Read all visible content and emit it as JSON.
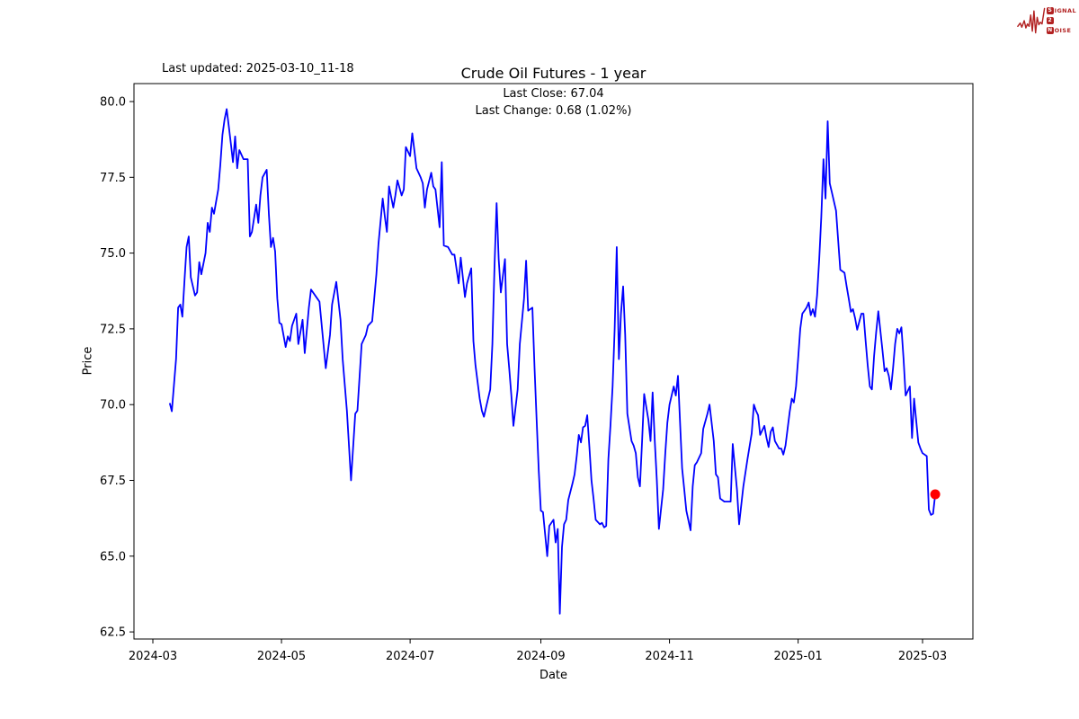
{
  "page": {
    "last_updated": "Last updated: 2025-03-10_11-18",
    "title": "Crude Oil Futures - 1 year",
    "annotation": {
      "last_close": "Last Close: 67.04",
      "last_change": "Last Change: 0.68 (1.02%)"
    },
    "xlabel": "Date",
    "ylabel": "Price"
  },
  "logo": {
    "color": "#b22222",
    "rows": [
      {
        "badge": "S",
        "rest": "IGNAL"
      },
      {
        "badge": "2",
        "rest": ""
      },
      {
        "badge": "N",
        "rest": "OISE"
      }
    ]
  },
  "chart_data": {
    "type": "line",
    "title": "Crude Oil Futures - 1 year",
    "xlabel": "Date",
    "ylabel": "Price",
    "last_close": 67.04,
    "last_change_abs": 0.68,
    "last_change_pct": 1.02,
    "line_color": "#0000ff",
    "marker_color": "#ff0000",
    "grid": false,
    "legend": "none",
    "ylim": [
      62.3,
      80.6
    ],
    "yticks": [
      62.5,
      65.0,
      67.5,
      70.0,
      72.5,
      75.0,
      77.5,
      80.0
    ],
    "xtick_labels": [
      "2024-03",
      "2024-05",
      "2024-07",
      "2024-09",
      "2024-11",
      "2025-01",
      "2025-03"
    ],
    "x_start": "2024-03-01",
    "dates": [
      "2024-03-09",
      "2024-03-10",
      "2024-03-12",
      "2024-03-13",
      "2024-03-14",
      "2024-03-15",
      "2024-03-16",
      "2024-03-17",
      "2024-03-18",
      "2024-03-19",
      "2024-03-21",
      "2024-03-22",
      "2024-03-23",
      "2024-03-24",
      "2024-03-26",
      "2024-03-27",
      "2024-03-28",
      "2024-03-29",
      "2024-03-30",
      "2024-04-01",
      "2024-04-02",
      "2024-04-03",
      "2024-04-04",
      "2024-04-05",
      "2024-04-06",
      "2024-04-07",
      "2024-04-08",
      "2024-04-09",
      "2024-04-10",
      "2024-04-11",
      "2024-04-13",
      "2024-04-15",
      "2024-04-16",
      "2024-04-17",
      "2024-04-19",
      "2024-04-20",
      "2024-04-21",
      "2024-04-22",
      "2024-04-24",
      "2024-04-25",
      "2024-04-26",
      "2024-04-27",
      "2024-04-28",
      "2024-04-29",
      "2024-04-30",
      "2024-05-01",
      "2024-05-03",
      "2024-05-04",
      "2024-05-05",
      "2024-05-06",
      "2024-05-08",
      "2024-05-09",
      "2024-05-11",
      "2024-05-12",
      "2024-05-14",
      "2024-05-15",
      "2024-05-18",
      "2024-05-19",
      "2024-05-22",
      "2024-05-24",
      "2024-05-25",
      "2024-05-27",
      "2024-05-29",
      "2024-05-30",
      "2024-06-01",
      "2024-06-03",
      "2024-06-05",
      "2024-06-06",
      "2024-06-08",
      "2024-06-10",
      "2024-06-11",
      "2024-06-13",
      "2024-06-14",
      "2024-06-15",
      "2024-06-16",
      "2024-06-18",
      "2024-06-19",
      "2024-06-20",
      "2024-06-21",
      "2024-06-23",
      "2024-06-24",
      "2024-06-25",
      "2024-06-27",
      "2024-06-28",
      "2024-06-29",
      "2024-07-01",
      "2024-07-02",
      "2024-07-03",
      "2024-07-04",
      "2024-07-06",
      "2024-07-07",
      "2024-07-08",
      "2024-07-09",
      "2024-07-11",
      "2024-07-12",
      "2024-07-13",
      "2024-07-15",
      "2024-07-16",
      "2024-07-17",
      "2024-07-19",
      "2024-07-21",
      "2024-07-22",
      "2024-07-24",
      "2024-07-25",
      "2024-07-27",
      "2024-07-28",
      "2024-07-30",
      "2024-07-31",
      "2024-08-01",
      "2024-08-03",
      "2024-08-04",
      "2024-08-05",
      "2024-08-06",
      "2024-08-08",
      "2024-08-09",
      "2024-08-10",
      "2024-08-11",
      "2024-08-12",
      "2024-08-13",
      "2024-08-15",
      "2024-08-16",
      "2024-08-17",
      "2024-08-18",
      "2024-08-19",
      "2024-08-21",
      "2024-08-22",
      "2024-08-24",
      "2024-08-25",
      "2024-08-26",
      "2024-08-28",
      "2024-08-29",
      "2024-08-30",
      "2024-08-31",
      "2024-09-01",
      "2024-09-02",
      "2024-09-04",
      "2024-09-05",
      "2024-09-07",
      "2024-09-08",
      "2024-09-09",
      "2024-09-10",
      "2024-09-11",
      "2024-09-12",
      "2024-09-13",
      "2024-09-14",
      "2024-09-16",
      "2024-09-17",
      "2024-09-18",
      "2024-09-19",
      "2024-09-20",
      "2024-09-21",
      "2024-09-22",
      "2024-09-23",
      "2024-09-24",
      "2024-09-25",
      "2024-09-26",
      "2024-09-27",
      "2024-09-29",
      "2024-09-30",
      "2024-10-01",
      "2024-10-02",
      "2024-10-03",
      "2024-10-04",
      "2024-10-05",
      "2024-10-06",
      "2024-10-07",
      "2024-10-08",
      "2024-10-09",
      "2024-10-10",
      "2024-10-11",
      "2024-10-12",
      "2024-10-14",
      "2024-10-15",
      "2024-10-16",
      "2024-10-17",
      "2024-10-18",
      "2024-10-19",
      "2024-10-20",
      "2024-10-22",
      "2024-10-23",
      "2024-10-24",
      "2024-10-25",
      "2024-10-26",
      "2024-10-27",
      "2024-10-29",
      "2024-10-30",
      "2024-10-31",
      "2024-11-01",
      "2024-11-03",
      "2024-11-04",
      "2024-11-05",
      "2024-11-07",
      "2024-11-08",
      "2024-11-09",
      "2024-11-11",
      "2024-11-12",
      "2024-11-13",
      "2024-11-14",
      "2024-11-16",
      "2024-11-17",
      "2024-11-19",
      "2024-11-20",
      "2024-11-22",
      "2024-11-23",
      "2024-11-24",
      "2024-11-25",
      "2024-11-27",
      "2024-11-28",
      "2024-11-30",
      "2024-12-01",
      "2024-12-03",
      "2024-12-04",
      "2024-12-06",
      "2024-12-08",
      "2024-12-10",
      "2024-12-11",
      "2024-12-12",
      "2024-12-13",
      "2024-12-14",
      "2024-12-16",
      "2024-12-17",
      "2024-12-18",
      "2024-12-19",
      "2024-12-20",
      "2024-12-21",
      "2024-12-23",
      "2024-12-24",
      "2024-12-25",
      "2024-12-26",
      "2024-12-27",
      "2024-12-28",
      "2024-12-29",
      "2024-12-30",
      "2024-12-31",
      "2025-01-01",
      "2025-01-02",
      "2025-01-03",
      "2025-01-04",
      "2025-01-05",
      "2025-01-06",
      "2025-01-07",
      "2025-01-08",
      "2025-01-09",
      "2025-01-10",
      "2025-01-11",
      "2025-01-12",
      "2025-01-13",
      "2025-01-14",
      "2025-01-15",
      "2025-01-16",
      "2025-01-17",
      "2025-01-19",
      "2025-01-20",
      "2025-01-21",
      "2025-01-23",
      "2025-01-24",
      "2025-01-25",
      "2025-01-26",
      "2025-01-27",
      "2025-01-28",
      "2025-01-29",
      "2025-01-31",
      "2025-02-01",
      "2025-02-02",
      "2025-02-03",
      "2025-02-04",
      "2025-02-05",
      "2025-02-06",
      "2025-02-07",
      "2025-02-08",
      "2025-02-10",
      "2025-02-11",
      "2025-02-12",
      "2025-02-13",
      "2025-02-14",
      "2025-02-15",
      "2025-02-16",
      "2025-02-17",
      "2025-02-18",
      "2025-02-19",
      "2025-02-20",
      "2025-02-21",
      "2025-02-23",
      "2025-02-24",
      "2025-02-25",
      "2025-02-27",
      "2025-02-28",
      "2025-03-01",
      "2025-03-03",
      "2025-03-04",
      "2025-03-05",
      "2025-03-06",
      "2025-03-07"
    ],
    "prices": [
      70.05,
      69.78,
      71.5,
      73.2,
      73.3,
      72.9,
      74.1,
      75.2,
      75.55,
      74.2,
      73.6,
      73.7,
      74.7,
      74.3,
      75.0,
      76.0,
      75.7,
      76.5,
      76.3,
      77.1,
      77.9,
      78.9,
      79.4,
      79.75,
      79.2,
      78.6,
      78.0,
      78.85,
      77.8,
      78.4,
      78.1,
      78.1,
      75.55,
      75.7,
      76.6,
      76.0,
      76.9,
      77.5,
      77.75,
      76.3,
      75.2,
      75.5,
      75.05,
      73.5,
      72.7,
      72.65,
      71.9,
      72.25,
      72.1,
      72.6,
      73.0,
      72.0,
      72.8,
      71.7,
      73.2,
      73.8,
      73.5,
      73.4,
      71.2,
      72.3,
      73.3,
      74.05,
      72.8,
      71.5,
      69.8,
      67.5,
      69.7,
      69.8,
      72.0,
      72.3,
      72.6,
      72.75,
      73.5,
      74.3,
      75.3,
      76.8,
      76.2,
      75.7,
      77.2,
      76.5,
      76.9,
      77.4,
      76.9,
      77.1,
      78.5,
      78.2,
      78.95,
      78.4,
      77.8,
      77.5,
      77.3,
      76.5,
      77.1,
      77.65,
      77.2,
      77.1,
      75.85,
      78.0,
      75.25,
      75.2,
      74.95,
      74.95,
      74.0,
      74.85,
      73.55,
      74.0,
      74.5,
      72.1,
      71.3,
      70.2,
      69.8,
      69.6,
      69.9,
      70.5,
      72.0,
      74.5,
      76.65,
      74.8,
      73.7,
      74.8,
      72.0,
      71.2,
      70.3,
      69.3,
      70.5,
      72.0,
      73.5,
      74.75,
      73.1,
      73.2,
      71.2,
      69.5,
      67.8,
      66.5,
      66.45,
      65.0,
      66.0,
      66.2,
      65.45,
      65.9,
      63.1,
      65.3,
      66.05,
      66.2,
      66.85,
      67.4,
      67.7,
      68.3,
      69.0,
      68.75,
      69.25,
      69.3,
      69.65,
      68.6,
      67.5,
      66.9,
      66.2,
      66.05,
      66.1,
      65.95,
      66.0,
      68.2,
      69.3,
      70.6,
      72.5,
      75.2,
      71.5,
      73.0,
      73.9,
      72.3,
      69.7,
      68.8,
      68.65,
      68.4,
      67.6,
      67.3,
      68.8,
      70.35,
      69.5,
      68.8,
      70.4,
      68.8,
      67.5,
      65.9,
      67.2,
      68.4,
      69.4,
      70.0,
      70.6,
      70.3,
      70.95,
      67.9,
      67.2,
      66.5,
      65.85,
      67.3,
      68.0,
      68.1,
      68.4,
      69.2,
      69.7,
      70.0,
      68.8,
      67.7,
      67.6,
      66.9,
      66.8,
      66.8,
      66.8,
      68.7,
      67.2,
      66.05,
      67.3,
      68.2,
      69.05,
      70.0,
      69.8,
      69.65,
      69.0,
      69.3,
      68.9,
      68.6,
      69.1,
      69.25,
      68.8,
      68.55,
      68.55,
      68.35,
      68.65,
      69.2,
      69.77,
      70.2,
      70.07,
      70.6,
      71.5,
      72.5,
      73.0,
      73.1,
      73.2,
      73.37,
      72.95,
      73.15,
      72.9,
      73.6,
      74.8,
      76.2,
      78.1,
      76.8,
      79.35,
      77.3,
      77.0,
      76.4,
      75.4,
      74.45,
      74.35,
      73.9,
      73.5,
      73.06,
      73.15,
      72.85,
      72.47,
      73.0,
      73.0,
      72.1,
      71.3,
      70.6,
      70.5,
      71.6,
      72.38,
      73.08,
      71.8,
      71.1,
      71.2,
      70.95,
      70.5,
      71.2,
      72.0,
      72.5,
      72.35,
      72.55,
      71.5,
      70.3,
      70.6,
      68.9,
      70.2,
      68.75,
      68.55,
      68.4,
      68.3,
      66.54,
      66.36,
      66.4,
      67.04
    ]
  }
}
